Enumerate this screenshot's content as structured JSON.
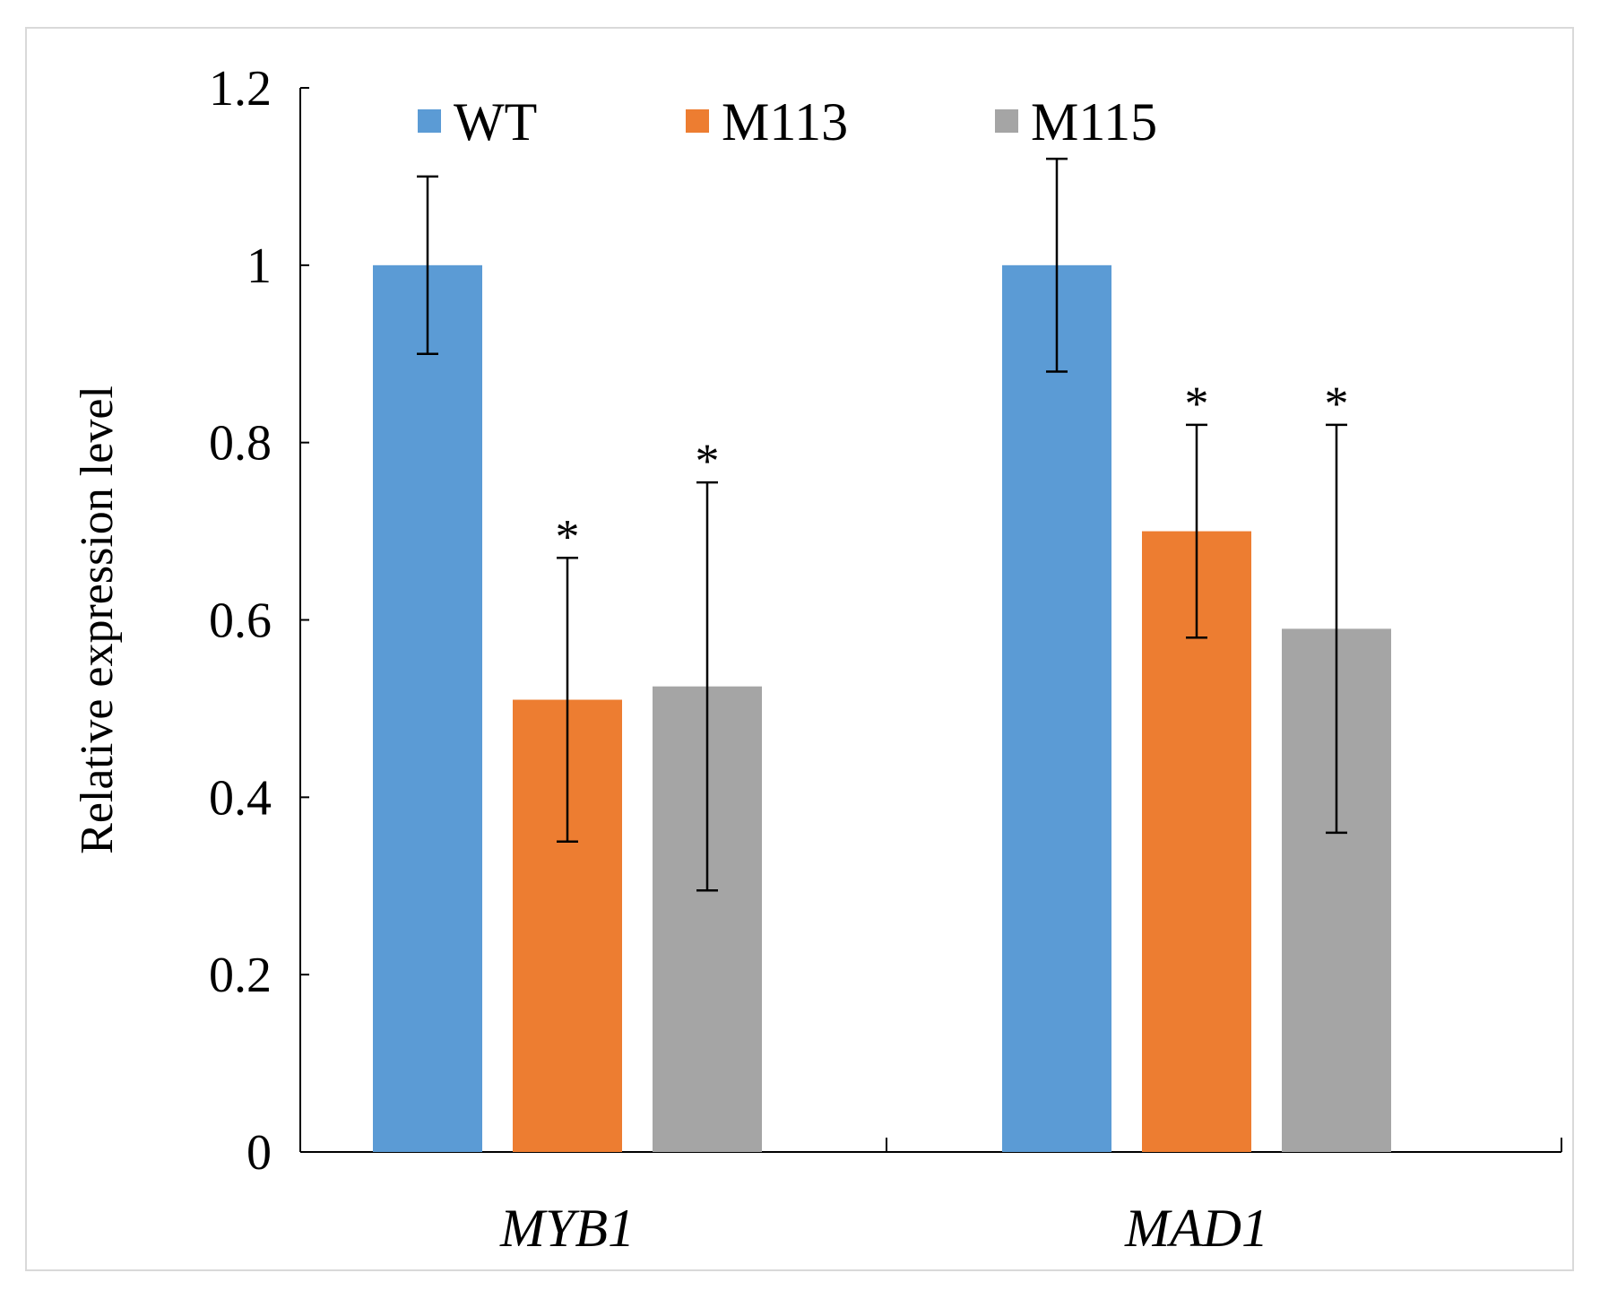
{
  "chart_data": {
    "type": "bar",
    "title": "",
    "xlabel": "",
    "ylabel": "Relative expression level",
    "ylim": [
      0,
      1.2
    ],
    "yticks": [
      "0",
      "0.2",
      "0.4",
      "0.6",
      "0.8",
      "1",
      "1.2"
    ],
    "ytick_values": [
      0,
      0.2,
      0.4,
      0.6,
      0.8,
      1.0,
      1.2
    ],
    "categories": [
      "MYB1",
      "MAD1"
    ],
    "category_style": "italic",
    "grid": false,
    "legend_position": "top",
    "series": [
      {
        "name": "WT",
        "color": "#5b9bd5",
        "values": [
          1.0,
          1.0
        ],
        "errors": [
          0.1,
          0.12
        ],
        "significance": [
          "",
          ""
        ]
      },
      {
        "name": "M113",
        "color": "#ed7d31",
        "values": [
          0.51,
          0.7
        ],
        "errors": [
          0.16,
          0.12
        ],
        "significance": [
          "*",
          "*"
        ]
      },
      {
        "name": "M115",
        "color": "#a5a5a5",
        "values": [
          0.525,
          0.59
        ],
        "errors": [
          0.23,
          0.23
        ],
        "significance": [
          "*",
          "*"
        ]
      }
    ]
  }
}
